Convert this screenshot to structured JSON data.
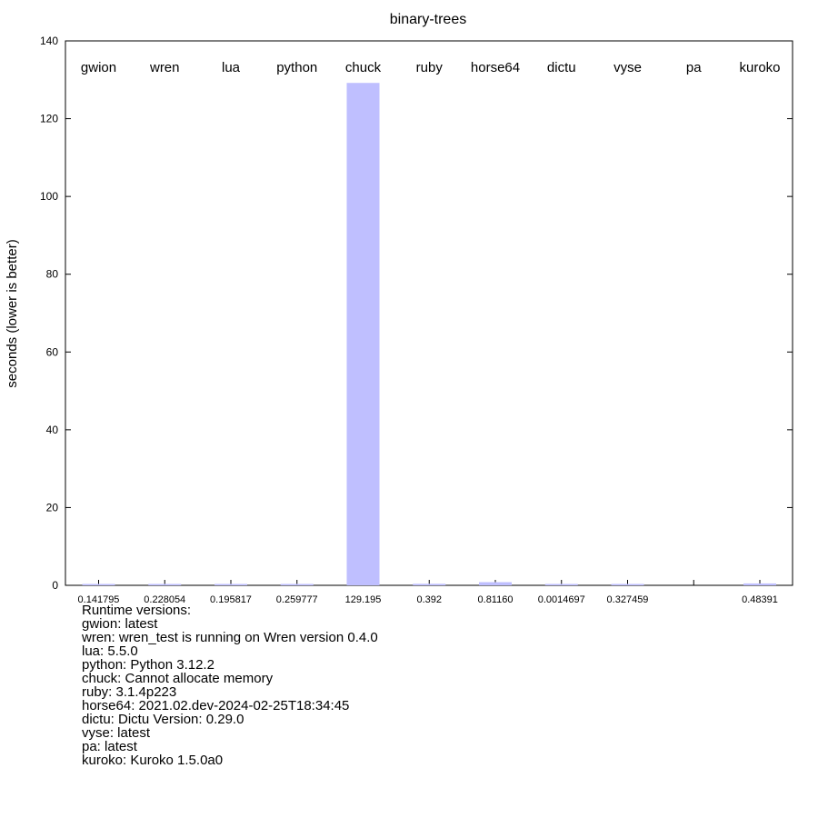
{
  "chart_data": {
    "type": "bar",
    "title": "binary-trees",
    "xlabel": "",
    "ylabel": "seconds (lower is better)",
    "ylim": [
      0,
      140
    ],
    "yticks": [
      0,
      20,
      40,
      60,
      80,
      100,
      120,
      140
    ],
    "grid": false,
    "legend": "none",
    "categories": [
      "gwion",
      "wren",
      "lua",
      "python",
      "chuck",
      "ruby",
      "horse64",
      "dictu",
      "vyse",
      "pa",
      "kuroko"
    ],
    "values": [
      0.141795,
      0.228054,
      0.195817,
      0.259777,
      129.195,
      0.392,
      0.8116,
      0.0014697,
      0.327459,
      null,
      0.48391
    ],
    "value_labels": [
      "0.141795",
      "0.228054",
      "0.195817",
      "0.259777",
      "129.195",
      "0.392",
      "0.81160",
      "0.0014697",
      "0.327459",
      "",
      "0.48391"
    ],
    "bar_color": "#bfbfff"
  },
  "notes": {
    "heading": "Runtime versions:",
    "lines": [
      "gwion: latest",
      "wren: wren_test is running on Wren version 0.4.0",
      "lua: 5.5.0",
      "python: Python 3.12.2",
      "chuck: Cannot allocate memory",
      "ruby: 3.1.4p223",
      "horse64: 2021.02.dev-2024-02-25T18:34:45",
      "dictu: Dictu Version: 0.29.0",
      "vyse: latest",
      "pa: latest",
      "kuroko: Kuroko 1.5.0a0"
    ]
  }
}
